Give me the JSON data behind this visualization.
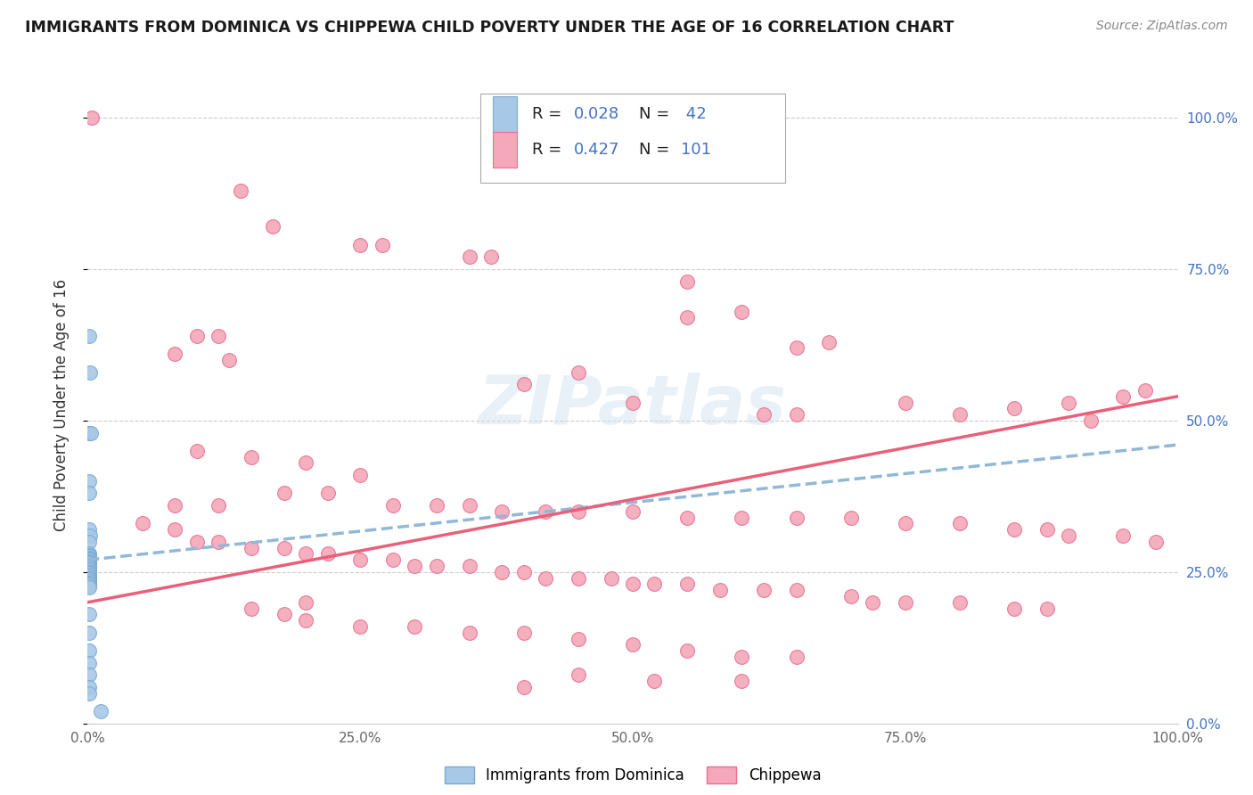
{
  "title": "IMMIGRANTS FROM DOMINICA VS CHIPPEWA CHILD POVERTY UNDER THE AGE OF 16 CORRELATION CHART",
  "source": "Source: ZipAtlas.com",
  "ylabel": "Child Poverty Under the Age of 16",
  "legend_label1": "Immigrants from Dominica",
  "legend_label2": "Chippewa",
  "R1": 0.028,
  "N1": 42,
  "R2": 0.427,
  "N2": 101,
  "color_blue": "#a8c8e8",
  "color_pink": "#f4a8b8",
  "color_blue_edge": "#7aaad0",
  "color_pink_edge": "#e87090",
  "color_blue_line": "#90b8d8",
  "color_pink_line": "#e8607a",
  "color_text_blue": "#4472c4",
  "color_grid": "#cccccc",
  "blue_points": [
    [
      0.001,
      0.64
    ],
    [
      0.002,
      0.58
    ],
    [
      0.001,
      0.48
    ],
    [
      0.003,
      0.48
    ],
    [
      0.001,
      0.4
    ],
    [
      0.001,
      0.38
    ],
    [
      0.001,
      0.32
    ],
    [
      0.002,
      0.31
    ],
    [
      0.001,
      0.3
    ],
    [
      0.001,
      0.28
    ],
    [
      0.001,
      0.278
    ],
    [
      0.001,
      0.276
    ],
    [
      0.001,
      0.274
    ],
    [
      0.001,
      0.272
    ],
    [
      0.001,
      0.27
    ],
    [
      0.001,
      0.268
    ],
    [
      0.001,
      0.266
    ],
    [
      0.001,
      0.264
    ],
    [
      0.001,
      0.262
    ],
    [
      0.001,
      0.26
    ],
    [
      0.001,
      0.258
    ],
    [
      0.001,
      0.255
    ],
    [
      0.001,
      0.252
    ],
    [
      0.001,
      0.25
    ],
    [
      0.001,
      0.248
    ],
    [
      0.001,
      0.245
    ],
    [
      0.001,
      0.243
    ],
    [
      0.001,
      0.24
    ],
    [
      0.001,
      0.238
    ],
    [
      0.001,
      0.235
    ],
    [
      0.001,
      0.232
    ],
    [
      0.001,
      0.23
    ],
    [
      0.001,
      0.227
    ],
    [
      0.001,
      0.224
    ],
    [
      0.001,
      0.18
    ],
    [
      0.001,
      0.15
    ],
    [
      0.001,
      0.12
    ],
    [
      0.001,
      0.1
    ],
    [
      0.001,
      0.08
    ],
    [
      0.001,
      0.06
    ],
    [
      0.001,
      0.05
    ],
    [
      0.012,
      0.02
    ]
  ],
  "pink_points": [
    [
      0.004,
      1.0
    ],
    [
      0.14,
      0.88
    ],
    [
      0.17,
      0.82
    ],
    [
      0.25,
      0.79
    ],
    [
      0.27,
      0.79
    ],
    [
      0.35,
      0.77
    ],
    [
      0.37,
      0.77
    ],
    [
      0.55,
      0.73
    ],
    [
      0.6,
      0.68
    ],
    [
      0.55,
      0.67
    ],
    [
      0.1,
      0.64
    ],
    [
      0.12,
      0.64
    ],
    [
      0.08,
      0.61
    ],
    [
      0.13,
      0.6
    ],
    [
      0.65,
      0.62
    ],
    [
      0.68,
      0.63
    ],
    [
      0.45,
      0.58
    ],
    [
      0.4,
      0.56
    ],
    [
      0.5,
      0.53
    ],
    [
      0.62,
      0.51
    ],
    [
      0.65,
      0.51
    ],
    [
      0.75,
      0.53
    ],
    [
      0.8,
      0.51
    ],
    [
      0.92,
      0.5
    ],
    [
      0.85,
      0.52
    ],
    [
      0.9,
      0.53
    ],
    [
      0.95,
      0.54
    ],
    [
      0.97,
      0.55
    ],
    [
      0.1,
      0.45
    ],
    [
      0.15,
      0.44
    ],
    [
      0.2,
      0.43
    ],
    [
      0.25,
      0.41
    ],
    [
      0.18,
      0.38
    ],
    [
      0.22,
      0.38
    ],
    [
      0.08,
      0.36
    ],
    [
      0.12,
      0.36
    ],
    [
      0.28,
      0.36
    ],
    [
      0.32,
      0.36
    ],
    [
      0.35,
      0.36
    ],
    [
      0.38,
      0.35
    ],
    [
      0.42,
      0.35
    ],
    [
      0.45,
      0.35
    ],
    [
      0.5,
      0.35
    ],
    [
      0.55,
      0.34
    ],
    [
      0.6,
      0.34
    ],
    [
      0.65,
      0.34
    ],
    [
      0.7,
      0.34
    ],
    [
      0.75,
      0.33
    ],
    [
      0.8,
      0.33
    ],
    [
      0.85,
      0.32
    ],
    [
      0.88,
      0.32
    ],
    [
      0.9,
      0.31
    ],
    [
      0.95,
      0.31
    ],
    [
      0.98,
      0.3
    ],
    [
      0.05,
      0.33
    ],
    [
      0.08,
      0.32
    ],
    [
      0.1,
      0.3
    ],
    [
      0.12,
      0.3
    ],
    [
      0.15,
      0.29
    ],
    [
      0.18,
      0.29
    ],
    [
      0.2,
      0.28
    ],
    [
      0.22,
      0.28
    ],
    [
      0.25,
      0.27
    ],
    [
      0.28,
      0.27
    ],
    [
      0.3,
      0.26
    ],
    [
      0.32,
      0.26
    ],
    [
      0.35,
      0.26
    ],
    [
      0.38,
      0.25
    ],
    [
      0.4,
      0.25
    ],
    [
      0.42,
      0.24
    ],
    [
      0.45,
      0.24
    ],
    [
      0.48,
      0.24
    ],
    [
      0.5,
      0.23
    ],
    [
      0.52,
      0.23
    ],
    [
      0.55,
      0.23
    ],
    [
      0.58,
      0.22
    ],
    [
      0.62,
      0.22
    ],
    [
      0.65,
      0.22
    ],
    [
      0.7,
      0.21
    ],
    [
      0.72,
      0.2
    ],
    [
      0.75,
      0.2
    ],
    [
      0.8,
      0.2
    ],
    [
      0.85,
      0.19
    ],
    [
      0.88,
      0.19
    ],
    [
      0.15,
      0.19
    ],
    [
      0.18,
      0.18
    ],
    [
      0.2,
      0.17
    ],
    [
      0.25,
      0.16
    ],
    [
      0.3,
      0.16
    ],
    [
      0.35,
      0.15
    ],
    [
      0.4,
      0.15
    ],
    [
      0.45,
      0.14
    ],
    [
      0.5,
      0.13
    ],
    [
      0.55,
      0.12
    ],
    [
      0.6,
      0.11
    ],
    [
      0.65,
      0.11
    ],
    [
      0.45,
      0.08
    ],
    [
      0.52,
      0.07
    ],
    [
      0.6,
      0.07
    ],
    [
      0.4,
      0.06
    ],
    [
      0.2,
      0.2
    ]
  ]
}
